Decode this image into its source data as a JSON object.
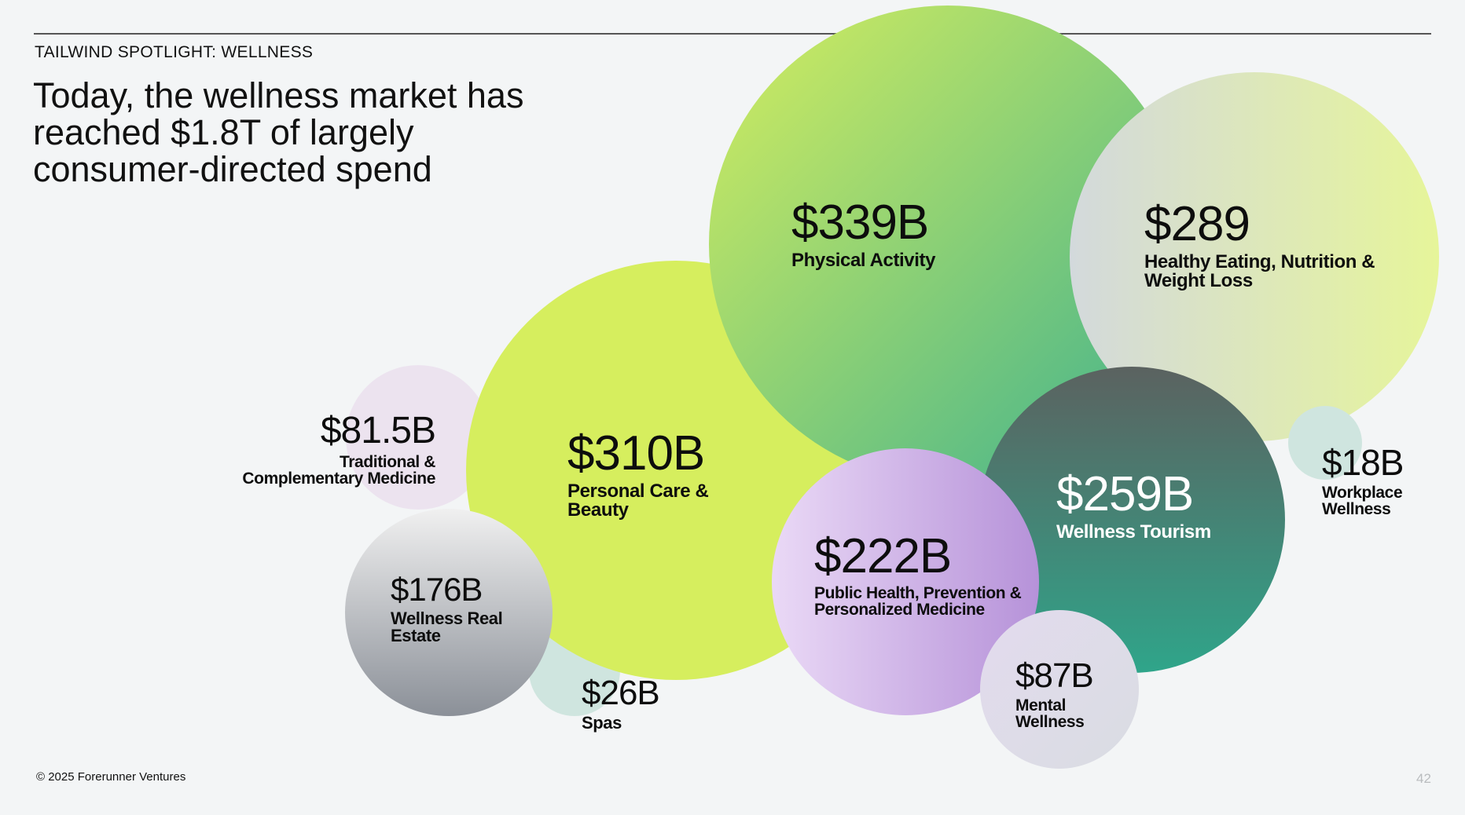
{
  "eyebrow": "TAILWIND SPOTLIGHT: WELLNESS",
  "headline": "Today, the wellness market has reached $1.8T of largely consumer-directed spend",
  "footer": "© 2025 Forerunner Ventures",
  "page_number": "42",
  "chart_data": {
    "type": "bubble",
    "title": "",
    "total": "$1.8T",
    "unit": "USD billions",
    "categories": [
      "Physical Activity",
      "Personal Care & Beauty",
      "Healthy Eating, Nutrition & Weight Loss",
      "Wellness Tourism",
      "Public Health, Prevention & Personalized Medicine",
      "Wellness Real Estate",
      "Mental Wellness",
      "Traditional & Complementary Medicine",
      "Spas",
      "Workplace Wellness"
    ],
    "values": [
      339,
      310,
      289,
      259,
      222,
      176,
      87,
      81.5,
      26,
      18
    ],
    "bubbles": [
      {
        "id": "spas",
        "value": 26,
        "value_label": "$26B",
        "label": "Spas",
        "colors": [
          "#cfe5df",
          "#cfe5df"
        ]
      },
      {
        "id": "traditional",
        "value": 81.5,
        "value_label": "$81.5B",
        "label": "Traditional & Complementary Medicine",
        "colors": [
          "#ece3ef",
          "#ece3ef"
        ]
      },
      {
        "id": "personal-care",
        "value": 310,
        "value_label": "$310B",
        "label": "Personal Care & Beauty",
        "colors": [
          "#d6ee5e",
          "#d6ee5e"
        ]
      },
      {
        "id": "wellness-real-estate",
        "value": 176,
        "value_label": "$176B",
        "label": "Wellness Real Estate",
        "colors": [
          "#f0f0f0",
          "#8b9098"
        ]
      },
      {
        "id": "physical-activity",
        "value": 339,
        "value_label": "$339B",
        "label": "Physical Activity",
        "colors": [
          "#d6ee5e",
          "#3cb08f"
        ]
      },
      {
        "id": "healthy-eating",
        "value": 289,
        "value_label": "$289",
        "label": "Healthy Eating, Nutrition & Weight Loss",
        "colors": [
          "#d3d9dc",
          "#e6f59a"
        ]
      },
      {
        "id": "wellness-tourism",
        "value": 259,
        "value_label": "$259B",
        "label": "Wellness Tourism",
        "colors": [
          "#5b6260",
          "#2fa58a"
        ]
      },
      {
        "id": "workplace",
        "value": 18,
        "value_label": "$18B",
        "label": "Workplace Wellness",
        "colors": [
          "#cfe5df",
          "#cfe5df"
        ]
      },
      {
        "id": "public-health",
        "value": 222,
        "value_label": "$222B",
        "label": "Public Health, Prevention & Personalized Medicine",
        "colors": [
          "#ead9f6",
          "#b692d9"
        ]
      },
      {
        "id": "mental-wellness",
        "value": 87,
        "value_label": "$87B",
        "label": "Mental Wellness",
        "colors": [
          "#e3dbee",
          "#d9dce2"
        ]
      }
    ]
  }
}
